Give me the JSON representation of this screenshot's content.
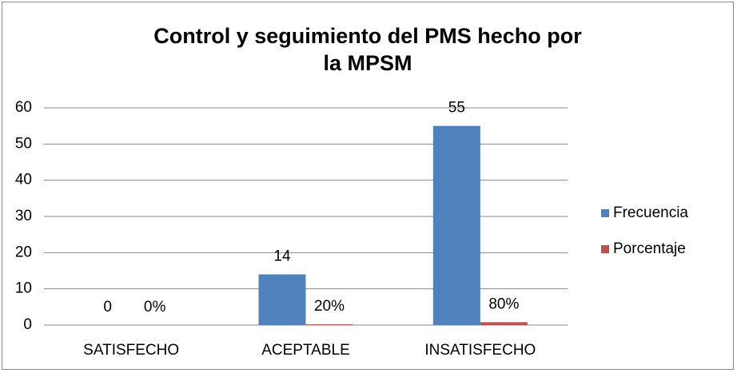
{
  "chart_data": {
    "type": "bar",
    "title": "Control y seguimiento del PMS hecho por la MPSM",
    "categories": [
      "SATISFECHO",
      "ACEPTABLE",
      "INSATISFECHO"
    ],
    "series": [
      {
        "name": "Frecuencia",
        "color": "#4f81bd",
        "values": [
          0,
          14,
          55
        ]
      },
      {
        "name": "Porcentaje",
        "color": "#c0504d",
        "values": [
          0,
          0.2,
          0.8
        ],
        "value_labels": [
          "0%",
          "20%",
          "80%"
        ]
      }
    ],
    "ylim": [
      0,
      60
    ],
    "yticks": [
      0,
      10,
      20,
      30,
      40,
      50,
      60
    ],
    "grid": true,
    "legend": "right"
  }
}
